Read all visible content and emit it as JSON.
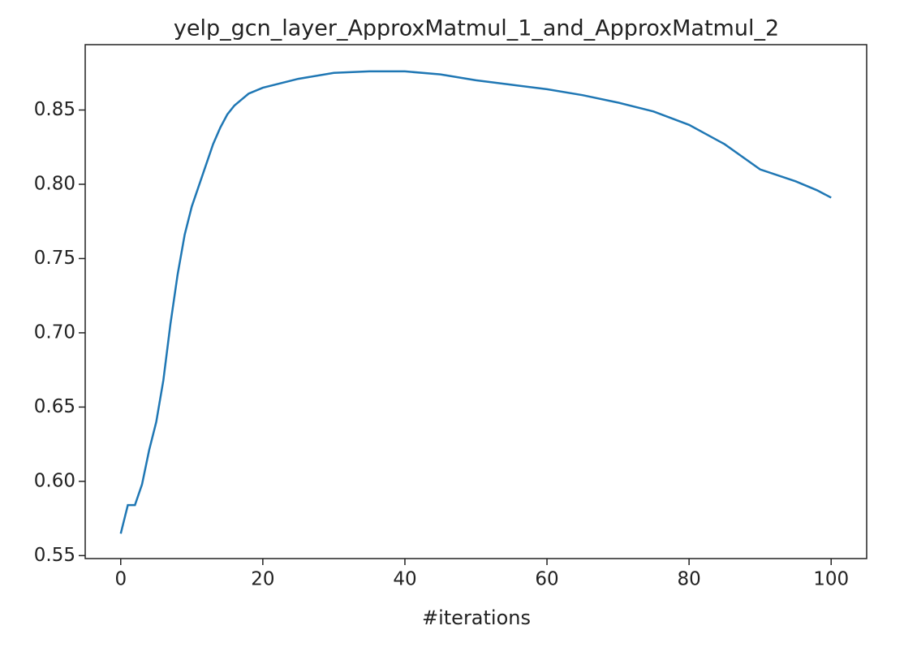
{
  "chart_data": {
    "type": "line",
    "title": "yelp_gcn_layer_ApproxMatmul_1_and_ApproxMatmul_2",
    "x_label": "#iterations",
    "series": [
      {
        "color": "#1f77b4",
        "x": [
          0,
          1,
          2,
          3,
          4,
          5,
          6,
          7,
          8,
          9,
          10,
          11,
          12,
          13,
          14,
          15,
          16,
          17,
          18,
          20,
          25,
          30,
          35,
          40,
          45,
          50,
          55,
          60,
          65,
          70,
          75,
          80,
          85,
          90,
          95,
          98,
          100
        ],
        "values": [
          0.5648,
          0.584,
          0.584,
          0.598,
          0.621,
          0.64,
          0.668,
          0.706,
          0.739,
          0.766,
          0.785,
          0.799,
          0.813,
          0.827,
          0.838,
          0.847,
          0.853,
          0.857,
          0.861,
          0.865,
          0.871,
          0.875,
          0.876,
          0.876,
          0.874,
          0.87,
          0.867,
          0.864,
          0.86,
          0.855,
          0.849,
          0.84,
          0.827,
          0.81,
          0.802,
          0.796,
          0.791
        ]
      }
    ],
    "xlim": [
      -5,
      105
    ],
    "xticks": [
      0,
      20,
      40,
      60,
      80,
      100
    ],
    "ylim": [
      0.548,
      0.894
    ],
    "yticks": [
      0.55,
      {
        "value": 0.6,
        "label": "0.60"
      },
      0.65,
      {
        "value": 0.7,
        "label": "0.70"
      },
      0.75,
      {
        "value": 0.8,
        "label": "0.80"
      },
      0.85
    ]
  }
}
